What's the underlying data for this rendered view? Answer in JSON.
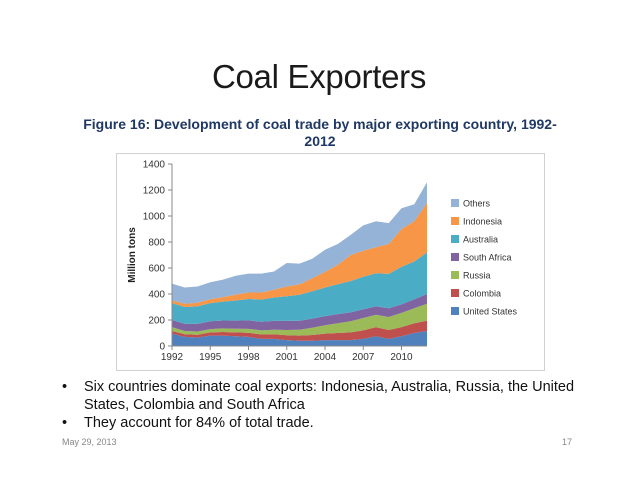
{
  "slide": {
    "title": "Coal Exporters",
    "footer_date": "May 29, 2013",
    "page_number": "17"
  },
  "bullets": [
    {
      "marker": "•",
      "text": "Six countries dominate coal exports: Indonesia, Australia, Russia, the United States, Colombia and South Africa"
    },
    {
      "marker": "•",
      "text": "They account for 84% of total trade."
    }
  ],
  "chart_data": {
    "type": "area",
    "stacked": true,
    "title": "Figure 16: Development of coal trade by major exporting country, 1992-2012",
    "xlabel": "",
    "ylabel": "Million tons",
    "xlim": [
      1992,
      2012
    ],
    "ylim": [
      0,
      1400
    ],
    "x_ticks": [
      1992,
      1995,
      1998,
      2001,
      2004,
      2007,
      2010
    ],
    "y_ticks": [
      0,
      200,
      400,
      600,
      800,
      1000,
      1200,
      1400
    ],
    "grid": false,
    "legend_position": "right",
    "x": [
      1992,
      1993,
      1994,
      1995,
      1996,
      1997,
      1998,
      1999,
      2000,
      2001,
      2002,
      2003,
      2004,
      2005,
      2006,
      2007,
      2008,
      2009,
      2010,
      2011,
      2012
    ],
    "series": [
      {
        "name": "United States",
        "color": "#4f81bd",
        "values": [
          95,
          70,
          65,
          80,
          80,
          75,
          70,
          55,
          55,
          45,
          40,
          40,
          45,
          45,
          45,
          55,
          75,
          55,
          75,
          100,
          115
        ]
      },
      {
        "name": "Colombia",
        "color": "#c0504d",
        "values": [
          20,
          20,
          22,
          25,
          28,
          30,
          32,
          33,
          35,
          38,
          40,
          45,
          50,
          55,
          60,
          65,
          70,
          68,
          70,
          75,
          80
        ]
      },
      {
        "name": "Russia",
        "color": "#9bbb59",
        "values": [
          30,
          25,
          25,
          25,
          28,
          28,
          30,
          32,
          35,
          40,
          45,
          55,
          65,
          75,
          85,
          95,
          95,
          100,
          110,
          115,
          130
        ]
      },
      {
        "name": "South Africa",
        "color": "#8064a2",
        "values": [
          55,
          55,
          58,
          60,
          60,
          62,
          65,
          67,
          68,
          70,
          69,
          71,
          70,
          70,
          69,
          68,
          65,
          67,
          65,
          70,
          75
        ]
      },
      {
        "name": "Australia",
        "color": "#4bacc6",
        "values": [
          130,
          130,
          135,
          140,
          145,
          155,
          165,
          170,
          180,
          190,
          200,
          210,
          220,
          230,
          240,
          250,
          255,
          265,
          290,
          290,
          320
        ]
      },
      {
        "name": "Indonesia",
        "color": "#f79646",
        "values": [
          20,
          25,
          28,
          30,
          35,
          45,
          50,
          55,
          60,
          75,
          80,
          100,
          120,
          150,
          200,
          200,
          200,
          230,
          290,
          310,
          380
        ]
      },
      {
        "name": "Others",
        "color": "#95b3d7",
        "values": [
          130,
          125,
          125,
          130,
          135,
          145,
          145,
          145,
          140,
          180,
          160,
          150,
          170,
          160,
          155,
          195,
          200,
          160,
          160,
          130,
          160
        ]
      }
    ]
  }
}
